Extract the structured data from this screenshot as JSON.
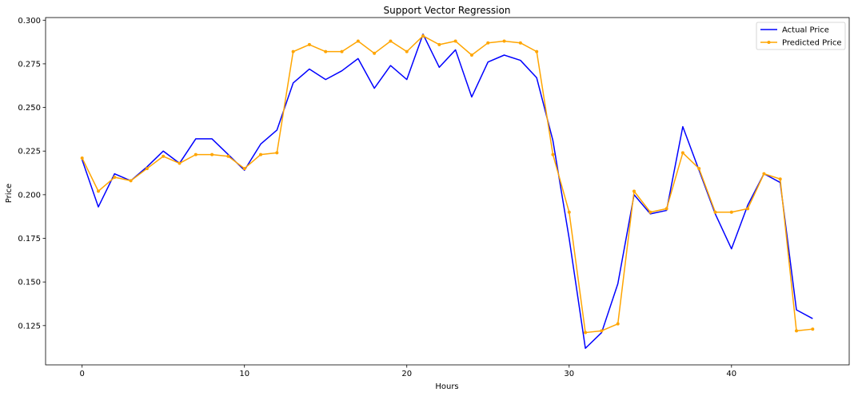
{
  "chart_data": {
    "type": "line",
    "title": "Support Vector Regression",
    "xlabel": "Hours",
    "ylabel": "Price",
    "xlim": [
      -2.25,
      47.25
    ],
    "ylim": [
      0.1025,
      0.3015
    ],
    "xticks": [
      0,
      10,
      20,
      30,
      40
    ],
    "yticks": [
      0.125,
      0.15,
      0.175,
      0.2,
      0.225,
      0.25,
      0.275,
      0.3
    ],
    "ytick_labels": [
      "0.125",
      "0.150",
      "0.175",
      "0.200",
      "0.225",
      "0.250",
      "0.275",
      "0.300"
    ],
    "grid": false,
    "legend_position": "top-right",
    "series": [
      {
        "name": "Actual Price",
        "color": "#0000ff",
        "marker": "none",
        "x": [
          0,
          1,
          2,
          3,
          4,
          5,
          6,
          7,
          8,
          9,
          10,
          11,
          12,
          13,
          14,
          15,
          16,
          17,
          18,
          19,
          20,
          21,
          22,
          23,
          24,
          25,
          26,
          27,
          28,
          29,
          30,
          31,
          32,
          33,
          34,
          35,
          36,
          37,
          38,
          39,
          40,
          41,
          42,
          43,
          44,
          45
        ],
        "values": [
          0.22,
          0.193,
          0.212,
          0.208,
          0.216,
          0.225,
          0.218,
          0.232,
          0.232,
          0.223,
          0.214,
          0.229,
          0.237,
          0.264,
          0.272,
          0.266,
          0.271,
          0.278,
          0.261,
          0.274,
          0.266,
          0.292,
          0.273,
          0.283,
          0.256,
          0.276,
          0.28,
          0.277,
          0.267,
          0.231,
          0.175,
          0.112,
          0.121,
          0.149,
          0.2,
          0.189,
          0.191,
          0.239,
          0.214,
          0.189,
          0.169,
          0.194,
          0.212,
          0.207,
          0.134,
          0.129
        ]
      },
      {
        "name": "Predicted Price",
        "color": "#ffa500",
        "marker": "dot",
        "x": [
          0,
          1,
          2,
          3,
          4,
          5,
          6,
          7,
          8,
          9,
          10,
          11,
          12,
          13,
          14,
          15,
          16,
          17,
          18,
          19,
          20,
          21,
          22,
          23,
          24,
          25,
          26,
          27,
          28,
          29,
          30,
          31,
          32,
          33,
          34,
          35,
          36,
          37,
          38,
          39,
          40,
          41,
          42,
          43,
          44,
          45
        ],
        "values": [
          0.221,
          0.202,
          0.21,
          0.208,
          0.215,
          0.222,
          0.218,
          0.223,
          0.223,
          0.222,
          0.215,
          0.223,
          0.224,
          0.282,
          0.286,
          0.282,
          0.282,
          0.288,
          0.281,
          0.288,
          0.282,
          0.291,
          0.286,
          0.288,
          0.28,
          0.287,
          0.288,
          0.287,
          0.282,
          0.223,
          0.19,
          0.121,
          0.122,
          0.126,
          0.202,
          0.19,
          0.192,
          0.224,
          0.215,
          0.19,
          0.19,
          0.192,
          0.212,
          0.209,
          0.122,
          0.123
        ]
      }
    ]
  }
}
